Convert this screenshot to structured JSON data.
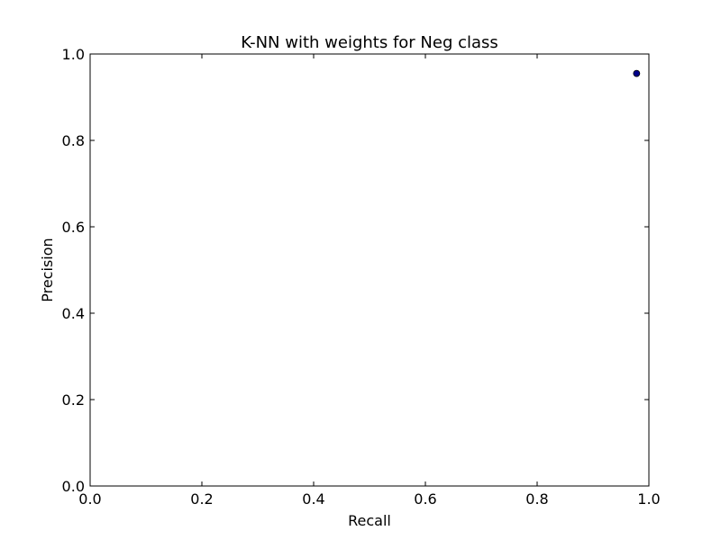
{
  "chart_data": {
    "type": "scatter",
    "title": "K-NN with weights for Neg class",
    "xlabel": "Recall",
    "ylabel": "Precision",
    "xlim": [
      0.0,
      1.0
    ],
    "ylim": [
      0.0,
      1.0
    ],
    "xticks": [
      0.0,
      0.2,
      0.4,
      0.6,
      0.8,
      1.0
    ],
    "yticks": [
      0.0,
      0.2,
      0.4,
      0.6,
      0.8,
      1.0
    ],
    "xtick_labels": [
      "0.0",
      "0.2",
      "0.4",
      "0.6",
      "0.8",
      "1.0"
    ],
    "ytick_labels": [
      "0.0",
      "0.2",
      "0.4",
      "0.6",
      "0.8",
      "1.0"
    ],
    "grid": false,
    "series": [
      {
        "points": [
          {
            "x": 0.978,
            "y": 0.955
          }
        ],
        "color": "#00008b"
      }
    ]
  }
}
